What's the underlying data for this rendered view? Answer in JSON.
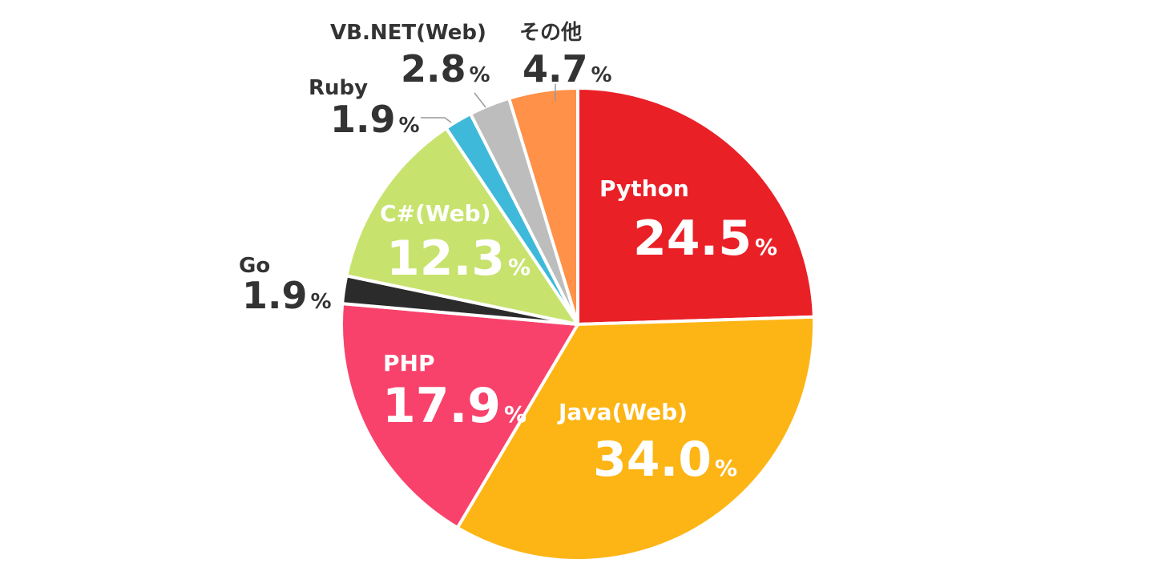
{
  "chart_data": {
    "type": "pie",
    "start": "12 o'clock",
    "direction": "clockwise",
    "slices": [
      {
        "label": "Python",
        "value": 24.5,
        "display": "24.5",
        "color": "#EA2027"
      },
      {
        "label": "Java(Web)",
        "value": 34.0,
        "display": "34.0",
        "color": "#FDB515"
      },
      {
        "label": "PHP",
        "value": 17.9,
        "display": "17.9",
        "color": "#F8426B"
      },
      {
        "label": "Go",
        "value": 1.9,
        "display": "1.9",
        "color": "#2B2B2B"
      },
      {
        "label": "C#(Web)",
        "value": 12.3,
        "display": "12.3",
        "color": "#C7E36E"
      },
      {
        "label": "Ruby",
        "value": 1.9,
        "display": "1.9",
        "color": "#3FB9DA"
      },
      {
        "label": "VB.NET(Web)",
        "value": 2.8,
        "display": "2.8",
        "color": "#BDBDBD"
      },
      {
        "label": "その他",
        "value": 4.7,
        "display": "4.7",
        "color": "#FF9148"
      }
    ],
    "percent_symbol": "%"
  }
}
